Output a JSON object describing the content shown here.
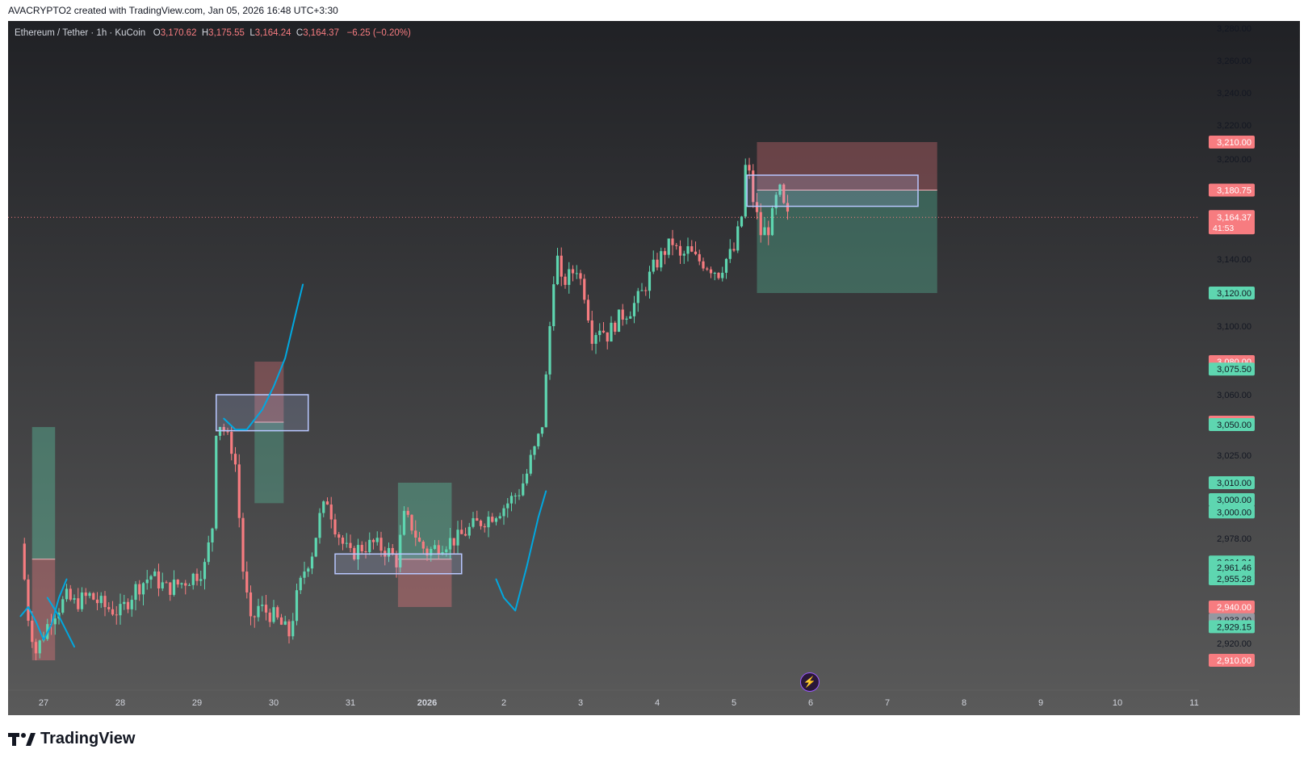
{
  "header": {
    "credit": "AVACRYPTO2 created with TradingView.com, Jan 05, 2026 16:48 UTC+3:30"
  },
  "legend": {
    "symbol": "Ethereum / Tether · 1h · KuCoin",
    "open_label": "O",
    "open": "3,170.62",
    "high_label": "H",
    "high": "3,175.55",
    "low_label": "L",
    "low": "3,164.24",
    "close_label": "C",
    "close": "3,164.37",
    "change": "−6.25 (−0.20%)"
  },
  "footer": {
    "brand": "TradingView",
    "icon": "tradingview-logo-icon"
  },
  "colors": {
    "up": "#26a69a",
    "up_body": "#5ed6b0",
    "down": "#f77c80",
    "bg_top": "#202125",
    "bg_bottom": "#5a5a5a",
    "zone_box": "#b8c7ff",
    "pen": "#00a8e0"
  },
  "chart_data": {
    "type": "candlestick",
    "symbol": "ETH/USDT",
    "timeframe": "1h",
    "exchange": "KuCoin",
    "y_axis": {
      "side": "right",
      "ticks": [
        "3,280.00",
        "3,260.00",
        "3,240.00",
        "3,220.00",
        "3,200.00",
        "3,140.00",
        "3,100.00",
        "3,060.00",
        "3,025.00",
        "2,978.00",
        "2,920.00"
      ]
    },
    "x_axis": {
      "ticks": [
        "27",
        "28",
        "29",
        "30",
        "31",
        "2026",
        "2",
        "3",
        "4",
        "5",
        "6",
        "7",
        "8",
        "9",
        "10",
        "11"
      ]
    },
    "current_price": {
      "value": "3,164.37",
      "countdown": "41:53"
    },
    "price_labels": [
      {
        "text": "3,210.00",
        "price": 3210,
        "color": "#f77c80"
      },
      {
        "text": "3,180.75",
        "price": 3180.75,
        "color": "#f77c80"
      },
      {
        "text": "3,120.00",
        "price": 3120,
        "color": "#5ed6b0"
      },
      {
        "text": "3,080.00",
        "price": 3080,
        "color": "#f77c80"
      },
      {
        "text": "3,075.50",
        "price": 3075.5,
        "color": "#5ed6b0"
      },
      {
        "text": "3,050.82",
        "price": 3050.82,
        "color": "#f77c80"
      },
      {
        "text": "3,050.00",
        "price": 3050,
        "color": "#5ed6b0"
      },
      {
        "text": "3,010.00",
        "price": 3010,
        "color": "#5ed6b0"
      },
      {
        "text": "3,000.00",
        "price": 3000,
        "color": "#5ed6b0"
      },
      {
        "text": "3,000.00",
        "price": 2993,
        "color": "#5ed6b0"
      },
      {
        "text": "2,964.34",
        "price": 2964.34,
        "color": "#5ed6b0"
      },
      {
        "text": "2,961.46",
        "price": 2961.46,
        "color": "#5ed6b0"
      },
      {
        "text": "2,955.28",
        "price": 2955.28,
        "color": "#5ed6b0"
      },
      {
        "text": "2,940.00",
        "price": 2940,
        "color": "#f77c80"
      },
      {
        "text": "2,933.00",
        "price": 2933,
        "color": "#9598a1"
      },
      {
        "text": "2,929.15",
        "price": 2929.15,
        "color": "#5ed6b0"
      },
      {
        "text": "2,910.00",
        "price": 2910,
        "color": "#f77c80"
      }
    ],
    "price_path": [
      [
        26.7,
        2975
      ],
      [
        26.8,
        2935
      ],
      [
        26.9,
        2915
      ],
      [
        27.0,
        2925
      ],
      [
        27.1,
        2935
      ],
      [
        27.2,
        2940
      ],
      [
        27.3,
        2945
      ],
      [
        27.4,
        2942
      ],
      [
        27.6,
        2946
      ],
      [
        27.8,
        2940
      ],
      [
        28.0,
        2937
      ],
      [
        28.2,
        2950
      ],
      [
        28.4,
        2957
      ],
      [
        28.6,
        2950
      ],
      [
        28.8,
        2953
      ],
      [
        29.0,
        2958
      ],
      [
        29.1,
        2962
      ],
      [
        29.2,
        2985
      ],
      [
        29.25,
        3045
      ],
      [
        29.3,
        3050
      ],
      [
        29.4,
        3040
      ],
      [
        29.5,
        3020
      ],
      [
        29.55,
        2990
      ],
      [
        29.6,
        2960
      ],
      [
        29.7,
        2930
      ],
      [
        29.8,
        2940
      ],
      [
        30.0,
        2935
      ],
      [
        30.1,
        2930
      ],
      [
        30.2,
        2925
      ],
      [
        30.3,
        2945
      ],
      [
        30.4,
        2960
      ],
      [
        30.5,
        2970
      ],
      [
        30.6,
        2990
      ],
      [
        30.7,
        3000
      ],
      [
        30.8,
        2985
      ],
      [
        30.9,
        2975
      ],
      [
        31.0,
        2968
      ],
      [
        31.1,
        2972
      ],
      [
        31.3,
        2975
      ],
      [
        31.5,
        2970
      ],
      [
        31.6,
        2965
      ],
      [
        31.7,
        2990
      ],
      [
        31.8,
        2985
      ],
      [
        31.9,
        2975
      ],
      [
        32.0,
        2970
      ],
      [
        32.2,
        2975
      ],
      [
        32.4,
        2978
      ],
      [
        32.6,
        2985
      ],
      [
        32.8,
        2990
      ],
      [
        33.0,
        2996
      ],
      [
        33.2,
        3005
      ],
      [
        33.3,
        3015
      ],
      [
        33.4,
        3030
      ],
      [
        33.5,
        3050
      ],
      [
        33.55,
        3070
      ],
      [
        33.6,
        3100
      ],
      [
        33.65,
        3130
      ],
      [
        33.7,
        3140
      ],
      [
        33.75,
        3125
      ],
      [
        33.85,
        3130
      ],
      [
        33.95,
        3135
      ],
      [
        34.05,
        3120
      ],
      [
        34.15,
        3095
      ],
      [
        34.25,
        3100
      ],
      [
        34.35,
        3095
      ],
      [
        34.5,
        3105
      ],
      [
        34.65,
        3110
      ],
      [
        34.8,
        3120
      ],
      [
        34.95,
        3135
      ],
      [
        35.1,
        3145
      ],
      [
        35.2,
        3150
      ],
      [
        35.3,
        3140
      ],
      [
        35.4,
        3145
      ],
      [
        35.5,
        3140
      ],
      [
        35.6,
        3138
      ],
      [
        35.7,
        3135
      ],
      [
        35.8,
        3132
      ],
      [
        35.9,
        3140
      ],
      [
        36.0,
        3145
      ],
      [
        36.1,
        3165
      ],
      [
        36.15,
        3195
      ],
      [
        36.2,
        3190
      ],
      [
        36.25,
        3175
      ],
      [
        36.3,
        3165
      ],
      [
        36.35,
        3155
      ],
      [
        36.45,
        3158
      ],
      [
        36.5,
        3165
      ],
      [
        36.55,
        3175
      ],
      [
        36.6,
        3180
      ],
      [
        36.65,
        3170
      ],
      [
        36.7,
        3164.37
      ]
    ],
    "zones": [
      {
        "type": "long",
        "from": 26.85,
        "to": 27.15,
        "entry": 2966,
        "target": 3048,
        "stop": 2910
      },
      {
        "type": "short",
        "from": 29.75,
        "to": 30.13,
        "entry": 3050.82,
        "target": 2998,
        "stop": 3080
      },
      {
        "type": "long",
        "from": 31.62,
        "to": 32.32,
        "entry": 2966,
        "target": 3010,
        "stop": 2940
      },
      {
        "type": "short",
        "from": 36.3,
        "to": 38.65,
        "entry": 3180.75,
        "target": 3120,
        "stop": 3210
      }
    ],
    "boxes": [
      {
        "from": 29.25,
        "to": 30.45,
        "top": 3060,
        "bottom": 3045
      },
      {
        "from": 30.8,
        "to": 32.45,
        "top": 2969,
        "bottom": 2958
      },
      {
        "from": 36.17,
        "to": 38.4,
        "top": 3190,
        "bottom": 3171
      }
    ]
  }
}
